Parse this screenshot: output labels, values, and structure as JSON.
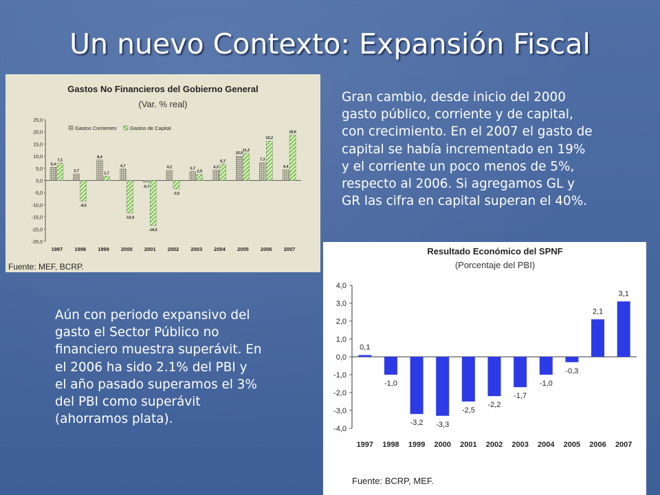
{
  "slide": {
    "title": "Un nuevo Contexto: Expansión Fiscal",
    "paragraph1": [
      "Gran cambio, desde inicio del 2000",
      "gasto público, corriente y de capital,",
      "con crecimiento. En el 2007 el gasto de",
      "capital se había incrementado en 19%",
      "y el corriente un poco menos de 5%,",
      "respecto al 2006. Si agregamos GL y",
      "GR las cifra en capital superan el 40%."
    ],
    "paragraph2": [
      "Aún con periodo expansivo del",
      "gasto el Sector Público no",
      "financiero muestra superávit. En",
      "el 2006 ha sido 2.1% del PBI y",
      "el año pasado superamos el 3%",
      "del PBI como superávit",
      "(ahorramos plata)."
    ]
  },
  "chart_data": [
    {
      "type": "bar",
      "title": "Gastos No Financieros del Gobierno General",
      "subtitle": "(Var. % real)",
      "source": "Fuente: MEF, BCRP.",
      "categories": [
        "1997",
        "1998",
        "1999",
        "2000",
        "2001",
        "2002",
        "2003",
        "2004",
        "2005",
        "2006",
        "2007"
      ],
      "series": [
        {
          "name": "Gastos Corrientes",
          "values": [
            5.4,
            2.7,
            8.4,
            4.7,
            -0.7,
            4.2,
            3.7,
            4.3,
            10.0,
            7.3,
            4.4
          ],
          "labels": [
            "5,4",
            "2,7",
            "8,4",
            "4,7",
            "-0,7",
            "4,2",
            "3,7",
            "4,3",
            "10,0",
            "7,3",
            "4,4"
          ]
        },
        {
          "name": "Gastos de Capital",
          "values": [
            7.1,
            -8.5,
            1.7,
            -13.4,
            -18.5,
            -3.5,
            2.5,
            6.7,
            11.2,
            16.2,
            18.6
          ],
          "labels": [
            "7,1",
            "-8,5",
            "1,7",
            "-13,4",
            "-18,5",
            "-3,5",
            "2,5",
            "6,7",
            "11,2",
            "16,2",
            "18,6"
          ]
        }
      ],
      "yticks": [
        "25,0",
        "20,0",
        "15,0",
        "10,0",
        "5,0",
        "0,0",
        "-5,0",
        "-10,0",
        "-15,0",
        "-20,0",
        "-25,0"
      ],
      "ylim": [
        -25,
        25
      ],
      "legend": "top-left",
      "colors": {
        "corrientes": "#9a9a86",
        "capital": "#7cc34a",
        "background": "#e6e4d0"
      }
    },
    {
      "type": "bar",
      "title": "Resultado Económico del SPNF",
      "subtitle": "(Porcentaje del PBI)",
      "source": "Fuente: BCRP, MEF.",
      "categories": [
        "1997",
        "1998",
        "1999",
        "2000",
        "2001",
        "2002",
        "2003",
        "2004",
        "2005",
        "2006",
        "2007"
      ],
      "series": [
        {
          "values": [
            0.1,
            -1.0,
            -3.2,
            -3.3,
            -2.5,
            -2.2,
            -1.7,
            -1.0,
            -0.3,
            2.1,
            3.1
          ],
          "labels": [
            "0,1",
            "-1,0",
            "-3,2",
            "-3,3",
            "-2,5",
            "-2,2",
            "-1,7",
            "-1,0",
            "-0,3",
            "2,1",
            "3,1"
          ]
        }
      ],
      "yticks": [
        "4,0",
        "3,0",
        "2,0",
        "1,0",
        "0,0",
        "-1,0",
        "-2,0",
        "-3,0",
        "-4,0"
      ],
      "ylim": [
        -4,
        4
      ],
      "colors": {
        "bar": "#2d3be6",
        "background": "#ffffff"
      }
    }
  ]
}
